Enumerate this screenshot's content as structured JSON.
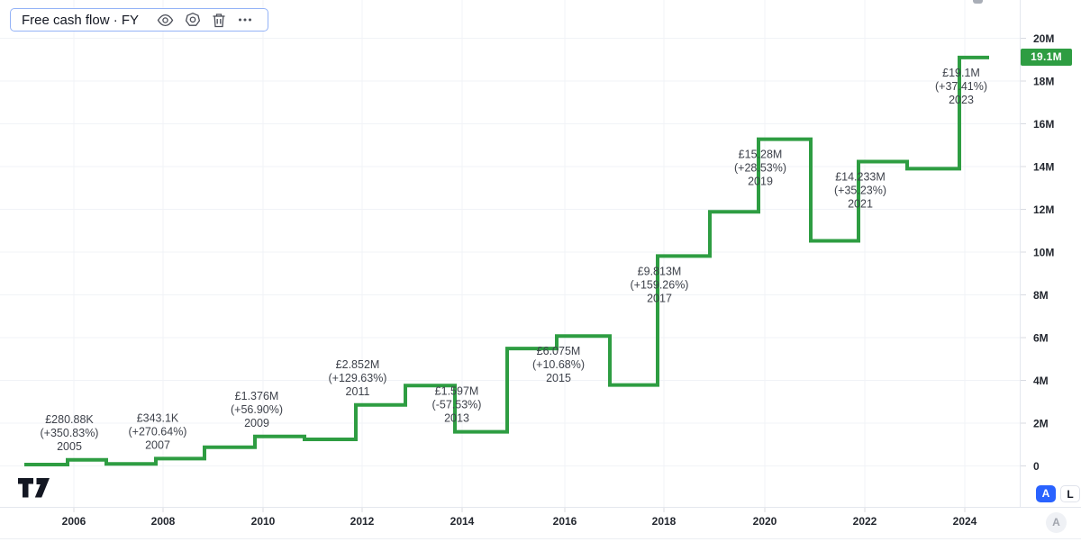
{
  "toolbar": {
    "title": "Free cash flow · FY",
    "icons": [
      {
        "name": "eye-icon",
        "meaning": "visibility"
      },
      {
        "name": "gear-icon",
        "meaning": "settings"
      },
      {
        "name": "trash-icon",
        "meaning": "remove"
      },
      {
        "name": "ellipsis-icon",
        "meaning": "more-options"
      }
    ]
  },
  "chart_data": {
    "type": "line",
    "style": "step",
    "title": "Free cash flow · FY",
    "currency": "GBP",
    "unit": "M",
    "line_color": "#2e9d42",
    "grid": true,
    "ylim": [
      0,
      20
    ],
    "x": [
      2004,
      2005,
      2006,
      2007,
      2008,
      2009,
      2010,
      2011,
      2012,
      2013,
      2014,
      2015,
      2016,
      2017,
      2018,
      2019,
      2020,
      2021,
      2022,
      2023
    ],
    "values": [
      0.062,
      0.281,
      0.093,
      0.343,
      0.877,
      1.376,
      1.242,
      2.852,
      3.76,
      1.597,
      5.489,
      6.075,
      3.785,
      9.813,
      11.888,
      15.28,
      10.525,
      14.233,
      13.9,
      19.1
    ],
    "y_ticks": [
      {
        "value": 20,
        "label": "20M"
      },
      {
        "value": 18,
        "label": "18M"
      },
      {
        "value": 16,
        "label": "16M"
      },
      {
        "value": 14,
        "label": "14M"
      },
      {
        "value": 12,
        "label": "12M"
      },
      {
        "value": 10,
        "label": "10M"
      },
      {
        "value": 8,
        "label": "8M"
      },
      {
        "value": 6,
        "label": "6M"
      },
      {
        "value": 4,
        "label": "4M"
      },
      {
        "value": 2,
        "label": "2M"
      },
      {
        "value": 0,
        "label": "0"
      }
    ],
    "x_ticks": [
      {
        "year": 2006,
        "label": "2006"
      },
      {
        "year": 2008,
        "label": "2008"
      },
      {
        "year": 2010,
        "label": "2010"
      },
      {
        "year": 2012,
        "label": "2012"
      },
      {
        "year": 2014,
        "label": "2014"
      },
      {
        "year": 2016,
        "label": "2016"
      },
      {
        "year": 2018,
        "label": "2018"
      },
      {
        "year": 2020,
        "label": "2020"
      },
      {
        "year": 2022,
        "label": "2022"
      },
      {
        "year": 2024,
        "label": "2024"
      }
    ],
    "annotations": [
      {
        "year": 2005,
        "value": 0.28088,
        "value_label": "£280.88K",
        "pct_label": "(+350.83%)",
        "year_label": "2005"
      },
      {
        "year": 2007,
        "value": 0.3431,
        "value_label": "£343.1K",
        "pct_label": "(+270.64%)",
        "year_label": "2007"
      },
      {
        "year": 2009,
        "value": 1.376,
        "value_label": "£1.376M",
        "pct_label": "(+56.90%)",
        "year_label": "2009"
      },
      {
        "year": 2011,
        "value": 2.852,
        "value_label": "£2.852M",
        "pct_label": "(+129.63%)",
        "year_label": "2011"
      },
      {
        "year": 2013,
        "value": 1.597,
        "value_label": "£1.597M",
        "pct_label": "(-57.53%)",
        "year_label": "2013"
      },
      {
        "year": 2015,
        "value": 6.075,
        "value_label": "£6.075M",
        "pct_label": "(+10.68%)",
        "year_label": "2015"
      },
      {
        "year": 2017,
        "value": 9.813,
        "value_label": "£9.813M",
        "pct_label": "(+159.26%)",
        "year_label": "2017"
      },
      {
        "year": 2019,
        "value": 15.28,
        "value_label": "£15.28M",
        "pct_label": "(+28.53%)",
        "year_label": "2019"
      },
      {
        "year": 2021,
        "value": 14.233,
        "value_label": "£14.233M",
        "pct_label": "(+35.23%)",
        "year_label": "2021"
      },
      {
        "year": 2023,
        "value": 19.1,
        "value_label": "£19.1M",
        "pct_label": "(+37.41%)",
        "year_label": "2023"
      }
    ],
    "last_value": {
      "value": 19.1,
      "label": "19.1M",
      "badge_color": "#2e9d42"
    }
  },
  "controls": {
    "auto_label": "A",
    "log_label": "L",
    "corner_label": "A"
  }
}
